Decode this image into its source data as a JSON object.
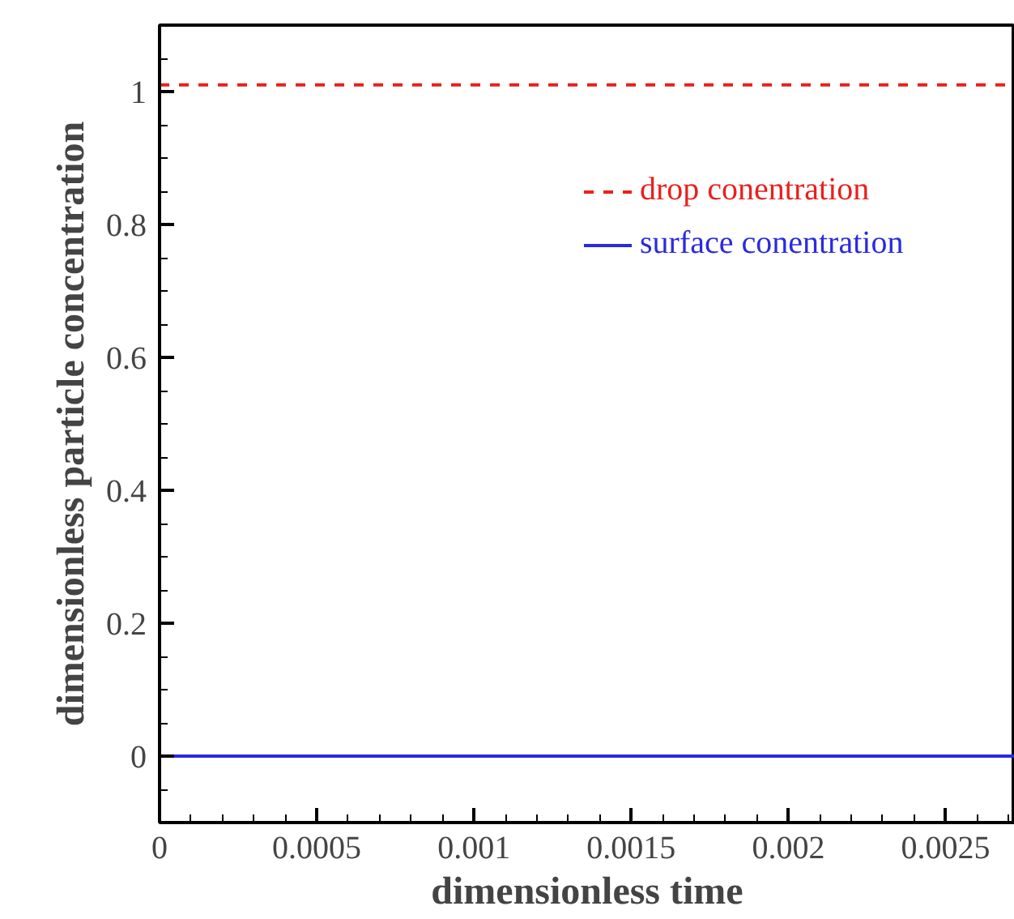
{
  "chart_data": {
    "type": "line",
    "xlabel": "dimensionless time",
    "ylabel": "dimensionless particle concentration",
    "x": [
      0,
      0.00272
    ],
    "series": [
      {
        "name": "drop conentration",
        "color": "#e8201c",
        "values": [
          1.01,
          1.01
        ],
        "line_style": "dashed"
      },
      {
        "name": "surface conentration",
        "color": "#2a2ae0",
        "values": [
          0,
          0
        ],
        "line_style": "solid"
      }
    ],
    "xlim": [
      0,
      0.00272
    ],
    "ylim": [
      -0.1,
      1.1
    ],
    "xticks": [
      0,
      {
        "value": 0.0001,
        "label": null
      },
      {
        "value": 0.0002,
        "label": null
      },
      {
        "value": 0.0003,
        "label": null
      },
      {
        "value": 0.0004,
        "label": null
      },
      0.0005,
      {
        "value": 0.0006,
        "label": null
      },
      {
        "value": 0.0007,
        "label": null
      },
      {
        "value": 0.0008,
        "label": null
      },
      {
        "value": 0.0009,
        "label": null
      },
      0.001,
      {
        "value": 0.0011,
        "label": null
      },
      {
        "value": 0.0012,
        "label": null
      },
      {
        "value": 0.0013,
        "label": null
      },
      {
        "value": 0.0014,
        "label": null
      },
      0.0015,
      {
        "value": 0.0016,
        "label": null
      },
      {
        "value": 0.0017,
        "label": null
      },
      {
        "value": 0.0018,
        "label": null
      },
      {
        "value": 0.0019,
        "label": null
      },
      0.002,
      {
        "value": 0.0021,
        "label": null
      },
      {
        "value": 0.0022,
        "label": null
      },
      {
        "value": 0.0023,
        "label": null
      },
      {
        "value": 0.0024,
        "label": null
      },
      0.0025,
      {
        "value": 0.0026,
        "label": null
      },
      {
        "value": 0.0027,
        "label": null
      }
    ],
    "yticks": [
      {
        "value": -0.05,
        "label": null
      },
      0,
      {
        "value": 0.05,
        "label": null
      },
      {
        "value": 0.1,
        "label": null
      },
      {
        "value": 0.15,
        "label": null
      },
      0.2,
      {
        "value": 0.25,
        "label": null
      },
      {
        "value": 0.3,
        "label": null
      },
      {
        "value": 0.35,
        "label": null
      },
      0.4,
      {
        "value": 0.45,
        "label": null
      },
      {
        "value": 0.5,
        "label": null
      },
      {
        "value": 0.55,
        "label": null
      },
      0.6,
      {
        "value": 0.65,
        "label": null
      },
      {
        "value": 0.7,
        "label": null
      },
      {
        "value": 0.75,
        "label": null
      },
      0.8,
      {
        "value": 0.85,
        "label": null
      },
      {
        "value": 0.9,
        "label": null
      },
      {
        "value": 0.95,
        "label": null
      },
      1,
      {
        "value": 1.05,
        "label": null
      }
    ],
    "grid": false,
    "legend": "top right"
  }
}
